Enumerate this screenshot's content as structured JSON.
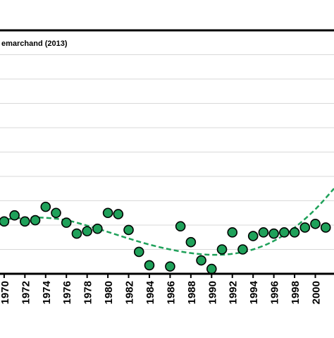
{
  "chart_data": {
    "type": "scatter",
    "title": "",
    "annotation": "emarchand (2013)",
    "xlabel": "",
    "ylabel": "",
    "xlim": [
      1969.6,
      2001.8
    ],
    "ylim": [
      0,
      10
    ],
    "x_ticks": [
      "1970",
      "1972",
      "1974",
      "1976",
      "1978",
      "1980",
      "1982",
      "1984",
      "1986",
      "1988",
      "1990",
      "1992",
      "1994",
      "1996",
      "1998",
      "2000"
    ],
    "grid": true,
    "legend": "none",
    "colors": {
      "marker_fill": "#1fa15a",
      "marker_stroke": "#000000",
      "trend_line": "#1fa15a",
      "grid": "#d9d9d9",
      "axis": "#000000"
    },
    "series": [
      {
        "style": "markers",
        "x": [
          1970,
          1971,
          1972,
          1973,
          1974,
          1975,
          1976,
          1977,
          1978,
          1979,
          1980,
          1981,
          1982,
          1983,
          1984,
          1986,
          1987,
          1988,
          1989,
          1990,
          1991,
          1992,
          1993,
          1994,
          1995,
          1996,
          1997,
          1998,
          1999,
          2000,
          2001
        ],
        "y": [
          2.15,
          2.4,
          2.15,
          2.2,
          2.75,
          2.5,
          2.1,
          1.65,
          1.75,
          1.85,
          2.5,
          2.45,
          1.8,
          0.9,
          0.35,
          0.3,
          1.95,
          1.3,
          0.55,
          0.2,
          1.0,
          1.7,
          1.0,
          1.55,
          1.7,
          1.65,
          1.7,
          1.7,
          1.9,
          2.05,
          1.9
        ]
      },
      {
        "style": "dashed-trend",
        "x": [
          1969.6,
          1970,
          1972,
          1974,
          1976,
          1978,
          1980,
          1982,
          1984,
          1986,
          1988,
          1990,
          1992,
          1994,
          1996,
          1998,
          2000,
          2001.8
        ],
        "y": [
          2.2,
          2.23,
          2.3,
          2.3,
          2.2,
          1.98,
          1.72,
          1.45,
          1.2,
          1.0,
          0.85,
          0.78,
          0.82,
          1.0,
          1.35,
          1.9,
          2.65,
          3.5
        ]
      }
    ]
  }
}
